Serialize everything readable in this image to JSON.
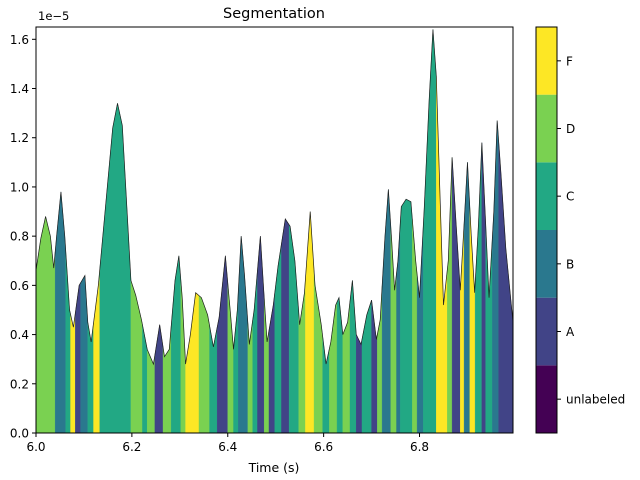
{
  "chart_data": {
    "type": "area",
    "title": "Segmentation",
    "xlabel": "Time (s)",
    "ylabel": "",
    "y_offset_label": "1e−5",
    "xlim": [
      6.0,
      6.995
    ],
    "ylim": [
      0.0,
      1.65e-05
    ],
    "xticks": [
      6.0,
      6.2,
      6.4,
      6.6,
      6.8
    ],
    "xtick_labels": [
      "6.0",
      "6.2",
      "6.4",
      "6.6",
      "6.8"
    ],
    "yticks": [
      0.0,
      2e-06,
      4e-06,
      6e-06,
      8e-06,
      1e-05,
      1.2e-05,
      1.4e-05,
      1.6e-05
    ],
    "ytick_labels": [
      "0.0",
      "0.2",
      "0.4",
      "0.6",
      "0.8",
      "1.0",
      "1.2",
      "1.4",
      "1.6"
    ],
    "grid": false,
    "envelope": [
      [
        6.0,
        0.66
      ],
      [
        6.01,
        0.79
      ],
      [
        6.02,
        0.88
      ],
      [
        6.03,
        0.8
      ],
      [
        6.037,
        0.67
      ],
      [
        6.043,
        0.8
      ],
      [
        6.052,
        0.98
      ],
      [
        6.06,
        0.8
      ],
      [
        6.07,
        0.5
      ],
      [
        6.078,
        0.43
      ],
      [
        6.09,
        0.6
      ],
      [
        6.102,
        0.64
      ],
      [
        6.108,
        0.45
      ],
      [
        6.115,
        0.37
      ],
      [
        6.13,
        0.6
      ],
      [
        6.145,
        0.92
      ],
      [
        6.16,
        1.24
      ],
      [
        6.17,
        1.34
      ],
      [
        6.18,
        1.25
      ],
      [
        6.19,
        0.9
      ],
      [
        6.198,
        0.62
      ],
      [
        6.208,
        0.56
      ],
      [
        6.22,
        0.46
      ],
      [
        6.232,
        0.34
      ],
      [
        6.245,
        0.28
      ],
      [
        6.258,
        0.44
      ],
      [
        6.268,
        0.31
      ],
      [
        6.278,
        0.34
      ],
      [
        6.29,
        0.62
      ],
      [
        6.298,
        0.72
      ],
      [
        6.305,
        0.55
      ],
      [
        6.312,
        0.28
      ],
      [
        6.322,
        0.4
      ],
      [
        6.333,
        0.57
      ],
      [
        6.345,
        0.55
      ],
      [
        6.358,
        0.48
      ],
      [
        6.37,
        0.35
      ],
      [
        6.382,
        0.47
      ],
      [
        6.395,
        0.72
      ],
      [
        6.405,
        0.5
      ],
      [
        6.412,
        0.34
      ],
      [
        6.42,
        0.5
      ],
      [
        6.428,
        0.8
      ],
      [
        6.435,
        0.64
      ],
      [
        6.445,
        0.36
      ],
      [
        6.455,
        0.5
      ],
      [
        6.468,
        0.8
      ],
      [
        6.475,
        0.58
      ],
      [
        6.482,
        0.37
      ],
      [
        6.495,
        0.52
      ],
      [
        6.505,
        0.68
      ],
      [
        6.52,
        0.87
      ],
      [
        6.53,
        0.84
      ],
      [
        6.54,
        0.7
      ],
      [
        6.55,
        0.44
      ],
      [
        6.56,
        0.57
      ],
      [
        6.572,
        0.9
      ],
      [
        6.582,
        0.6
      ],
      [
        6.595,
        0.44
      ],
      [
        6.605,
        0.28
      ],
      [
        6.615,
        0.37
      ],
      [
        6.625,
        0.52
      ],
      [
        6.632,
        0.55
      ],
      [
        6.64,
        0.4
      ],
      [
        6.65,
        0.45
      ],
      [
        6.66,
        0.62
      ],
      [
        6.668,
        0.4
      ],
      [
        6.678,
        0.36
      ],
      [
        6.69,
        0.48
      ],
      [
        6.7,
        0.54
      ],
      [
        6.71,
        0.38
      ],
      [
        6.718,
        0.46
      ],
      [
        6.728,
        0.8
      ],
      [
        6.735,
        0.99
      ],
      [
        6.742,
        0.78
      ],
      [
        6.748,
        0.58
      ],
      [
        6.755,
        0.7
      ],
      [
        6.762,
        0.92
      ],
      [
        6.772,
        0.95
      ],
      [
        6.782,
        0.94
      ],
      [
        6.792,
        0.7
      ],
      [
        6.8,
        0.55
      ],
      [
        6.81,
        0.92
      ],
      [
        6.82,
        1.35
      ],
      [
        6.828,
        1.64
      ],
      [
        6.835,
        1.45
      ],
      [
        6.843,
        0.95
      ],
      [
        6.85,
        0.52
      ],
      [
        6.86,
        0.7
      ],
      [
        6.868,
        1.12
      ],
      [
        6.876,
        0.86
      ],
      [
        6.885,
        0.58
      ],
      [
        6.893,
        0.85
      ],
      [
        6.9,
        1.1
      ],
      [
        6.908,
        0.8
      ],
      [
        6.915,
        0.57
      ],
      [
        6.923,
        0.85
      ],
      [
        6.93,
        1.18
      ],
      [
        6.938,
        0.85
      ],
      [
        6.945,
        0.55
      ],
      [
        6.955,
        0.9
      ],
      [
        6.962,
        1.27
      ],
      [
        6.97,
        1.05
      ],
      [
        6.98,
        0.75
      ],
      [
        6.995,
        0.45
      ]
    ],
    "envelope_scale": 1e-05,
    "segments": [
      {
        "start": 6.0,
        "end": 6.04,
        "label": "D"
      },
      {
        "start": 6.04,
        "end": 6.062,
        "label": "B"
      },
      {
        "start": 6.062,
        "end": 6.072,
        "label": "C"
      },
      {
        "start": 6.072,
        "end": 6.082,
        "label": "F"
      },
      {
        "start": 6.082,
        "end": 6.093,
        "label": "A"
      },
      {
        "start": 6.093,
        "end": 6.108,
        "label": "B"
      },
      {
        "start": 6.108,
        "end": 6.12,
        "label": "C"
      },
      {
        "start": 6.12,
        "end": 6.133,
        "label": "F"
      },
      {
        "start": 6.133,
        "end": 6.198,
        "label": "C"
      },
      {
        "start": 6.198,
        "end": 6.222,
        "label": "D"
      },
      {
        "start": 6.222,
        "end": 6.232,
        "label": "C"
      },
      {
        "start": 6.232,
        "end": 6.248,
        "label": "D"
      },
      {
        "start": 6.248,
        "end": 6.265,
        "label": "A"
      },
      {
        "start": 6.265,
        "end": 6.282,
        "label": "D"
      },
      {
        "start": 6.282,
        "end": 6.302,
        "label": "C"
      },
      {
        "start": 6.302,
        "end": 6.312,
        "label": "D"
      },
      {
        "start": 6.312,
        "end": 6.34,
        "label": "F"
      },
      {
        "start": 6.34,
        "end": 6.362,
        "label": "D"
      },
      {
        "start": 6.362,
        "end": 6.378,
        "label": "C"
      },
      {
        "start": 6.378,
        "end": 6.4,
        "label": "A"
      },
      {
        "start": 6.4,
        "end": 6.412,
        "label": "D"
      },
      {
        "start": 6.412,
        "end": 6.422,
        "label": "C"
      },
      {
        "start": 6.422,
        "end": 6.442,
        "label": "B"
      },
      {
        "start": 6.442,
        "end": 6.452,
        "label": "D"
      },
      {
        "start": 6.452,
        "end": 6.462,
        "label": "C"
      },
      {
        "start": 6.462,
        "end": 6.476,
        "label": "A"
      },
      {
        "start": 6.476,
        "end": 6.486,
        "label": "D"
      },
      {
        "start": 6.486,
        "end": 6.498,
        "label": "A"
      },
      {
        "start": 6.498,
        "end": 6.512,
        "label": "C"
      },
      {
        "start": 6.512,
        "end": 6.528,
        "label": "A"
      },
      {
        "start": 6.528,
        "end": 6.548,
        "label": "C"
      },
      {
        "start": 6.548,
        "end": 6.562,
        "label": "D"
      },
      {
        "start": 6.562,
        "end": 6.58,
        "label": "F"
      },
      {
        "start": 6.58,
        "end": 6.598,
        "label": "D"
      },
      {
        "start": 6.598,
        "end": 6.612,
        "label": "C"
      },
      {
        "start": 6.612,
        "end": 6.628,
        "label": "D"
      },
      {
        "start": 6.628,
        "end": 6.64,
        "label": "C"
      },
      {
        "start": 6.64,
        "end": 6.655,
        "label": "D"
      },
      {
        "start": 6.655,
        "end": 6.668,
        "label": "C"
      },
      {
        "start": 6.668,
        "end": 6.68,
        "label": "A"
      },
      {
        "start": 6.68,
        "end": 6.7,
        "label": "C"
      },
      {
        "start": 6.7,
        "end": 6.712,
        "label": "A"
      },
      {
        "start": 6.712,
        "end": 6.722,
        "label": "D"
      },
      {
        "start": 6.722,
        "end": 6.74,
        "label": "B"
      },
      {
        "start": 6.74,
        "end": 6.752,
        "label": "D"
      },
      {
        "start": 6.752,
        "end": 6.76,
        "label": "B"
      },
      {
        "start": 6.76,
        "end": 6.785,
        "label": "C"
      },
      {
        "start": 6.785,
        "end": 6.795,
        "label": "D"
      },
      {
        "start": 6.795,
        "end": 6.808,
        "label": "B"
      },
      {
        "start": 6.808,
        "end": 6.835,
        "label": "C"
      },
      {
        "start": 6.835,
        "end": 6.858,
        "label": "F"
      },
      {
        "start": 6.858,
        "end": 6.868,
        "label": "D"
      },
      {
        "start": 6.868,
        "end": 6.885,
        "label": "A"
      },
      {
        "start": 6.885,
        "end": 6.893,
        "label": "F"
      },
      {
        "start": 6.893,
        "end": 6.905,
        "label": "B"
      },
      {
        "start": 6.905,
        "end": 6.916,
        "label": "F"
      },
      {
        "start": 6.916,
        "end": 6.93,
        "label": "C"
      },
      {
        "start": 6.93,
        "end": 6.938,
        "label": "A"
      },
      {
        "start": 6.938,
        "end": 6.952,
        "label": "C"
      },
      {
        "start": 6.952,
        "end": 6.965,
        "label": "B"
      },
      {
        "start": 6.965,
        "end": 6.995,
        "label": "A"
      }
    ],
    "colorbar": {
      "labels": [
        "unlabeled",
        "A",
        "B",
        "C",
        "D",
        "F"
      ],
      "colors": [
        "#440154",
        "#414487",
        "#2a788e",
        "#22a884",
        "#7ad151",
        "#fde725"
      ]
    },
    "outline_color": "#1f1f1f"
  }
}
